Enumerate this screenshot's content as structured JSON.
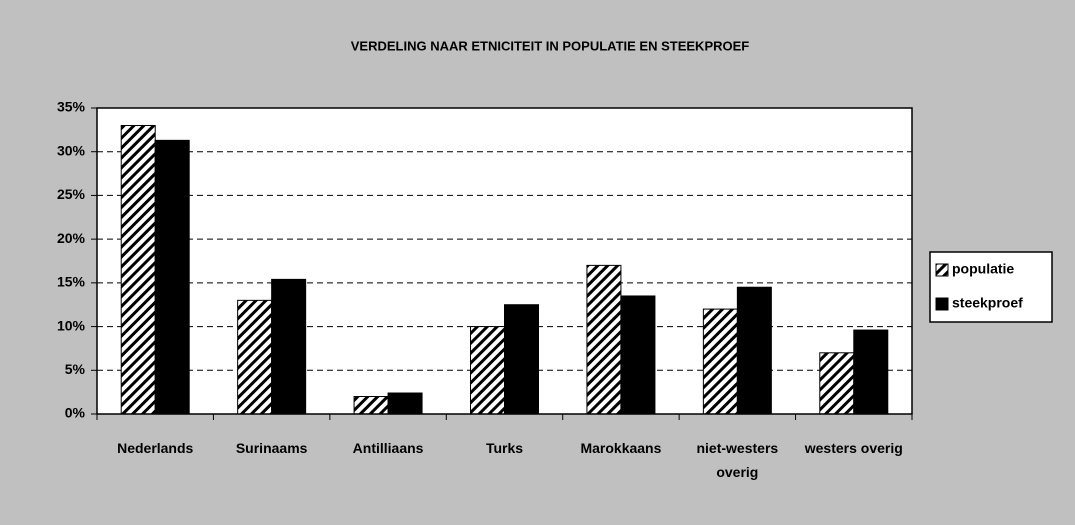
{
  "chart_data": {
    "type": "bar",
    "title": "VERDELING NAAR ETNICITEIT IN POPULATIE EN STEEKPROEF",
    "categories": [
      "Nederlands",
      "Surinaams",
      "Antilliaans",
      "Turks",
      "Marokkaans",
      "niet-westers overig",
      "westers overig"
    ],
    "series": [
      {
        "name": "populatie",
        "color": "#000000",
        "pattern": "hatch",
        "values": [
          33,
          13,
          2,
          10,
          17,
          12,
          7
        ]
      },
      {
        "name": "steekproef",
        "color": "#000000",
        "values": [
          31.3,
          15.4,
          2.4,
          12.5,
          13.5,
          14.5,
          9.6
        ]
      }
    ],
    "ylim": [
      0,
      35
    ],
    "yticks": [
      {
        "value": 0,
        "label": "0%"
      },
      {
        "value": 5,
        "label": "5%"
      },
      {
        "value": 10,
        "label": "10%"
      },
      {
        "value": 15,
        "label": "15%"
      },
      {
        "value": 20,
        "label": "20%"
      },
      {
        "value": 25,
        "label": "25%"
      },
      {
        "value": 30,
        "label": "30%"
      },
      {
        "value": 35,
        "label": "35%"
      }
    ],
    "grid": true,
    "legend": "right"
  }
}
